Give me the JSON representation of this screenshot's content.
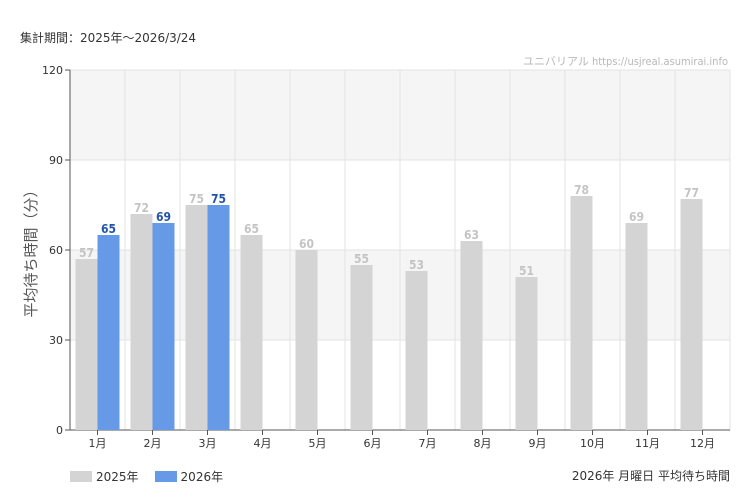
{
  "header": {
    "period": "集計期間：2025年～2026/3/24",
    "watermark": "ユニバリアル  https://usjreal.asumirai.info"
  },
  "footer": {
    "subtitle": "2026年 月曜日 平均待ち時間"
  },
  "colors": {
    "series_2025": "#d4d4d4",
    "series_2026": "#6699e6",
    "label_2025": "#c4c4c4",
    "label_2026": "#2255aa",
    "band": "#f5f5f5",
    "grid": "#e3e3e3"
  },
  "chart_data": {
    "type": "bar",
    "ylabel": "平均待ち時間（分）",
    "xlabel": "",
    "ylim": [
      0,
      120
    ],
    "yticks": [
      0,
      30,
      60,
      90,
      120
    ],
    "categories": [
      "1月",
      "2月",
      "3月",
      "4月",
      "5月",
      "6月",
      "7月",
      "8月",
      "9月",
      "10月",
      "11月",
      "12月"
    ],
    "series": [
      {
        "name": "2025年",
        "values": [
          57,
          72,
          75,
          65,
          60,
          55,
          53,
          63,
          51,
          78,
          69,
          77
        ]
      },
      {
        "name": "2026年",
        "values": [
          65,
          69,
          75,
          null,
          null,
          null,
          null,
          null,
          null,
          null,
          null,
          null
        ]
      }
    ],
    "legend": "bottom-left",
    "grid": true
  }
}
